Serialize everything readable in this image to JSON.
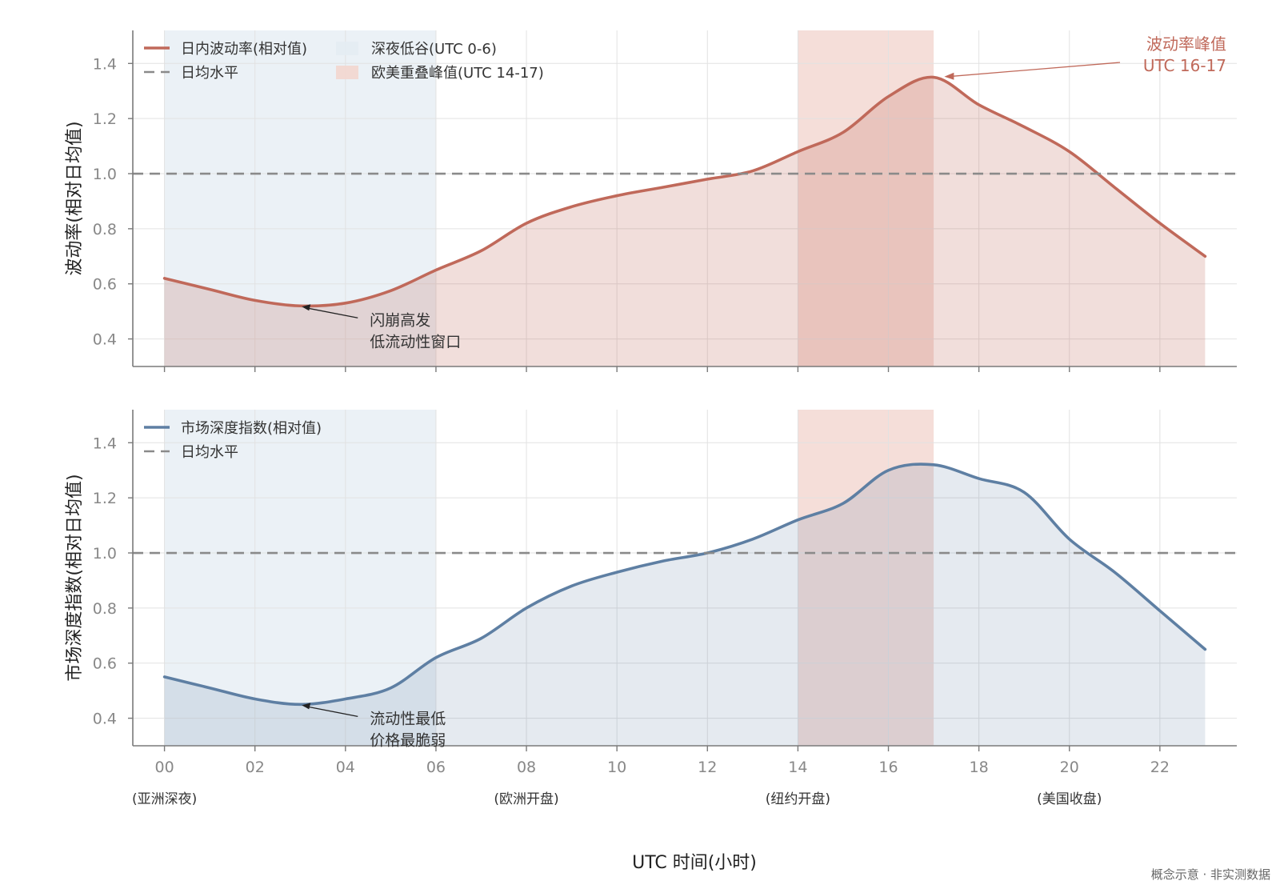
{
  "footnote": "概念示意 · 非实测数据",
  "xlabel": "UTC 时间(小时)",
  "x_ticks": [
    "00",
    "02",
    "04",
    "06",
    "08",
    "10",
    "12",
    "14",
    "16",
    "18",
    "20",
    "22"
  ],
  "session_labels": [
    {
      "hour": 0,
      "text": "(亚洲深夜)"
    },
    {
      "hour": 8,
      "text": "(欧洲开盘)"
    },
    {
      "hour": 14,
      "text": "(纽约开盘)"
    },
    {
      "hour": 20,
      "text": "(美国收盘)"
    }
  ],
  "colors": {
    "volatility": "#c0695a",
    "depth": "#5e7fa3",
    "night_band": "#e4ecf3",
    "overlap_band": "#f3d6cf",
    "baseline": "#8a8a8a"
  },
  "chart_data": [
    {
      "type": "area",
      "ylabel": "波动率(相对日均值)",
      "xlim": [
        -0.7,
        23.7
      ],
      "ylim": [
        0.3,
        1.52
      ],
      "y_ticks": [
        0.4,
        0.6,
        0.8,
        1.0,
        1.2,
        1.4
      ],
      "x": [
        0,
        1,
        2,
        3,
        4,
        5,
        6,
        7,
        8,
        9,
        10,
        11,
        12,
        13,
        14,
        15,
        16,
        17,
        18,
        19,
        20,
        21,
        22,
        23
      ],
      "series": [
        {
          "name": "日内波动率(相对值)",
          "values": [
            0.62,
            0.58,
            0.54,
            0.52,
            0.53,
            0.575,
            0.65,
            0.72,
            0.82,
            0.88,
            0.92,
            0.95,
            0.98,
            1.01,
            1.08,
            1.15,
            1.28,
            1.35,
            1.25,
            1.17,
            1.08,
            0.95,
            0.82,
            0.7
          ]
        }
      ],
      "baseline": {
        "name": "日均水平",
        "value": 1.0
      },
      "bands": [
        {
          "name": "深夜低谷(UTC 0-6)",
          "from": 0,
          "to": 6
        },
        {
          "name": "欧美重叠峰值(UTC 14-17)",
          "from": 14,
          "to": 17
        }
      ],
      "annotations": [
        {
          "lines": [
            "闪崩高发",
            "低流动性窗口"
          ],
          "x": 3,
          "y": 0.52
        },
        {
          "lines": [
            "波动率峰值",
            "UTC 16-17"
          ],
          "x": 17.2,
          "y": 1.355
        }
      ],
      "legend": "top-left"
    },
    {
      "type": "area",
      "ylabel": "市场深度指数(相对日均值)",
      "xlim": [
        -0.7,
        23.7
      ],
      "ylim": [
        0.3,
        1.52
      ],
      "y_ticks": [
        0.4,
        0.6,
        0.8,
        1.0,
        1.2,
        1.4
      ],
      "x": [
        0,
        1,
        2,
        3,
        4,
        5,
        6,
        7,
        8,
        9,
        10,
        11,
        12,
        13,
        14,
        15,
        16,
        17,
        18,
        19,
        20,
        21,
        22,
        23
      ],
      "series": [
        {
          "name": "市场深度指数(相对值)",
          "values": [
            0.55,
            0.51,
            0.47,
            0.45,
            0.47,
            0.51,
            0.62,
            0.69,
            0.8,
            0.88,
            0.93,
            0.97,
            1.0,
            1.05,
            1.12,
            1.18,
            1.3,
            1.32,
            1.27,
            1.22,
            1.05,
            0.93,
            0.79,
            0.65
          ]
        }
      ],
      "baseline": {
        "name": "日均水平",
        "value": 1.0
      },
      "bands": [
        {
          "name": "深夜低谷",
          "from": 0,
          "to": 6
        },
        {
          "name": "欧美重叠",
          "from": 14,
          "to": 17
        }
      ],
      "annotations": [
        {
          "lines": [
            "流动性最低",
            "价格最脆弱"
          ],
          "x": 3,
          "y": 0.45
        }
      ],
      "legend": "top-left"
    }
  ]
}
